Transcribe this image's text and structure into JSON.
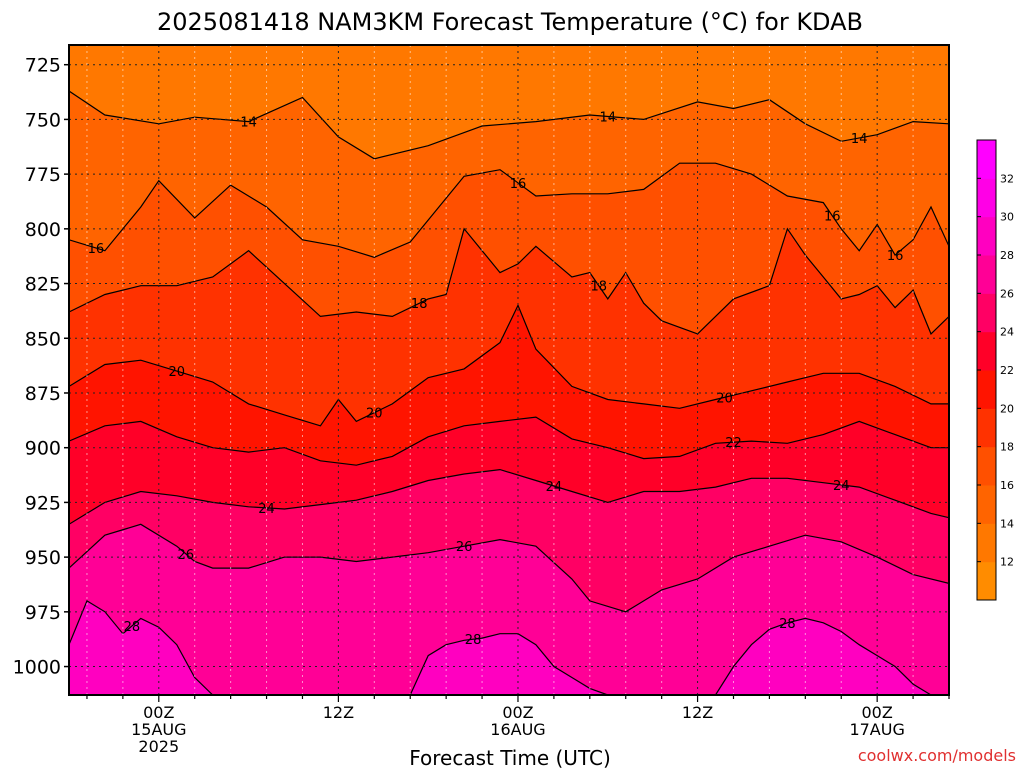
{
  "chart_data": {
    "type": "heatmap",
    "title": "2025081418 NAM3KM Forecast Temperature (°C) for KDAB",
    "xlabel": "Forecast Time (UTC)",
    "ylabel": "",
    "credit": "coolwx.com/models",
    "y_axis": {
      "range": [
        1013,
        716
      ],
      "ticks": [
        725,
        750,
        775,
        800,
        825,
        850,
        875,
        900,
        925,
        950,
        975,
        1000
      ]
    },
    "x_axis": {
      "range_hours": [
        -5,
        44
      ],
      "ticks": [
        {
          "hour": 0,
          "lines": [
            "00Z",
            "15AUG",
            "2025"
          ]
        },
        {
          "hour": 10,
          "lines": [
            "12Z"
          ]
        },
        {
          "hour": 20,
          "lines": [
            "00Z",
            "16AUG"
          ]
        },
        {
          "hour": 30,
          "lines": [
            "12Z"
          ]
        },
        {
          "hour": 40,
          "lines": [
            "00Z",
            "17AUG"
          ]
        }
      ]
    },
    "colorbar": {
      "labels": [
        12,
        14,
        16,
        18,
        20,
        22,
        24,
        26,
        28,
        30,
        32
      ],
      "colors": [
        "#ff8c00",
        "#ff7800",
        "#ff6400",
        "#ff5000",
        "#ff3200",
        "#ff1400",
        "#ff0028",
        "#ff0064",
        "#ff0096",
        "#ff00c0",
        "#ff00e6",
        "#ff00ff"
      ]
    },
    "ground_color": "#a0522d",
    "contour_levels": [
      14,
      16,
      18,
      20,
      22,
      24,
      26,
      28
    ],
    "contours": [
      {
        "level": 14,
        "x": [
          -5,
          -3,
          0,
          2,
          5,
          8,
          10,
          12,
          15,
          18,
          21,
          24,
          27,
          30,
          32,
          34,
          36,
          38,
          40,
          42,
          44
        ],
        "p": [
          737,
          748,
          752,
          749,
          751,
          740,
          758,
          768,
          762,
          753,
          751,
          748,
          750,
          742,
          745,
          741,
          752,
          760,
          757,
          751,
          752
        ],
        "labels": [
          {
            "x": 5,
            "text": "14"
          },
          {
            "x": 25,
            "text": "14"
          },
          {
            "x": 39,
            "text": "14"
          }
        ]
      },
      {
        "level": 16,
        "x": [
          -5,
          -3,
          -1,
          0,
          2,
          4,
          6,
          8,
          10,
          12,
          14,
          17,
          19,
          21,
          23,
          25,
          27,
          29,
          31,
          33,
          35,
          37,
          38,
          39,
          40,
          41,
          42,
          43,
          44
        ],
        "p": [
          805,
          810,
          790,
          778,
          795,
          780,
          790,
          805,
          808,
          813,
          806,
          776,
          773,
          785,
          784,
          784,
          782,
          770,
          770,
          775,
          785,
          788,
          800,
          810,
          798,
          812,
          805,
          790,
          808
        ],
        "labels": [
          {
            "x": -3.5,
            "text": "16"
          },
          {
            "x": 20,
            "text": "16"
          },
          {
            "x": 37.5,
            "text": "16"
          },
          {
            "x": 41,
            "text": "16"
          }
        ]
      },
      {
        "level": 18,
        "x": [
          -5,
          -3,
          -1,
          1,
          3,
          5,
          7,
          9,
          11,
          13,
          15,
          16,
          17,
          18,
          19,
          20,
          21,
          22,
          23,
          24,
          25,
          26,
          27,
          28,
          30,
          32,
          34,
          35,
          36,
          37,
          38,
          39,
          40,
          41,
          42,
          43,
          44
        ],
        "p": [
          838,
          830,
          826,
          826,
          822,
          810,
          825,
          840,
          838,
          840,
          832,
          830,
          800,
          810,
          820,
          816,
          808,
          815,
          822,
          820,
          832,
          820,
          834,
          842,
          848,
          832,
          826,
          800,
          812,
          822,
          832,
          830,
          826,
          836,
          828,
          848,
          840
        ],
        "labels": [
          {
            "x": 14.5,
            "text": "18"
          },
          {
            "x": 24.5,
            "text": "18"
          }
        ]
      },
      {
        "level": 20,
        "x": [
          -5,
          -3,
          -1,
          1,
          3,
          5,
          7,
          9,
          10,
          11,
          13,
          15,
          17,
          19,
          20,
          21,
          23,
          25,
          27,
          29,
          31,
          33,
          35,
          37,
          39,
          41,
          43,
          44
        ],
        "p": [
          872,
          862,
          860,
          865,
          870,
          880,
          885,
          890,
          878,
          888,
          880,
          868,
          864,
          852,
          835,
          855,
          872,
          878,
          880,
          882,
          878,
          874,
          870,
          866,
          866,
          872,
          880,
          880
        ],
        "labels": [
          {
            "x": 1,
            "text": "20"
          },
          {
            "x": 12,
            "text": "20"
          },
          {
            "x": 31.5,
            "text": "20"
          }
        ]
      },
      {
        "level": 22,
        "x": [
          -5,
          -3,
          -1,
          1,
          3,
          5,
          7,
          9,
          11,
          13,
          15,
          17,
          19,
          21,
          23,
          25,
          27,
          29,
          31,
          33,
          35,
          37,
          39,
          41,
          43,
          44
        ],
        "p": [
          897,
          890,
          888,
          895,
          900,
          902,
          900,
          906,
          908,
          904,
          895,
          890,
          888,
          886,
          896,
          900,
          905,
          904,
          898,
          897,
          898,
          894,
          888,
          894,
          900,
          900
        ],
        "labels": [
          {
            "x": 32,
            "text": "22"
          }
        ]
      },
      {
        "level": 24,
        "x": [
          -5,
          -3,
          -1,
          1,
          3,
          5,
          7,
          9,
          11,
          13,
          15,
          17,
          19,
          21,
          23,
          25,
          27,
          29,
          31,
          33,
          35,
          37,
          39,
          41,
          43,
          44
        ],
        "p": [
          935,
          925,
          920,
          922,
          925,
          927,
          928,
          926,
          924,
          920,
          915,
          912,
          910,
          915,
          920,
          925,
          920,
          920,
          918,
          914,
          914,
          916,
          918,
          924,
          930,
          932
        ],
        "labels": [
          {
            "x": 6,
            "text": "24"
          },
          {
            "x": 22,
            "text": "24"
          },
          {
            "x": 38,
            "text": "24"
          }
        ]
      },
      {
        "level": 26,
        "x": [
          -5,
          -3,
          -1,
          1,
          2,
          3,
          5,
          7,
          9,
          11,
          13,
          15,
          17,
          19,
          21,
          23,
          24,
          26,
          28,
          30,
          32,
          34,
          36,
          38,
          40,
          42,
          44
        ],
        "p": [
          955,
          940,
          935,
          945,
          952,
          955,
          955,
          950,
          950,
          952,
          950,
          948,
          945,
          942,
          945,
          960,
          970,
          975,
          965,
          960,
          950,
          945,
          940,
          943,
          950,
          958,
          962
        ],
        "labels": [
          {
            "x": 1.5,
            "text": "26"
          },
          {
            "x": 17,
            "text": "26"
          }
        ]
      },
      {
        "level": 28,
        "x": [
          -5,
          -4,
          -3,
          -2,
          -1,
          0,
          1,
          2,
          3
        ],
        "p": [
          990,
          970,
          975,
          985,
          978,
          982,
          990,
          1005,
          1013
        ],
        "labels": [
          {
            "x": -1.5,
            "text": "28"
          }
        ]
      },
      {
        "level": 28,
        "x": [
          14,
          15,
          16,
          17,
          18,
          19,
          20,
          21,
          22,
          23,
          24,
          25
        ],
        "p": [
          1013,
          995,
          990,
          988,
          987,
          985,
          985,
          990,
          1000,
          1005,
          1010,
          1013
        ],
        "labels": [
          {
            "x": 17.5,
            "text": "28"
          }
        ]
      },
      {
        "level": 28,
        "x": [
          31,
          32,
          33,
          34,
          35,
          36,
          37,
          38,
          39,
          40,
          41,
          42,
          43
        ],
        "p": [
          1013,
          1000,
          990,
          983,
          980,
          978,
          980,
          984,
          990,
          995,
          1000,
          1008,
          1013
        ],
        "labels": [
          {
            "x": 35,
            "text": "28"
          }
        ]
      }
    ]
  }
}
